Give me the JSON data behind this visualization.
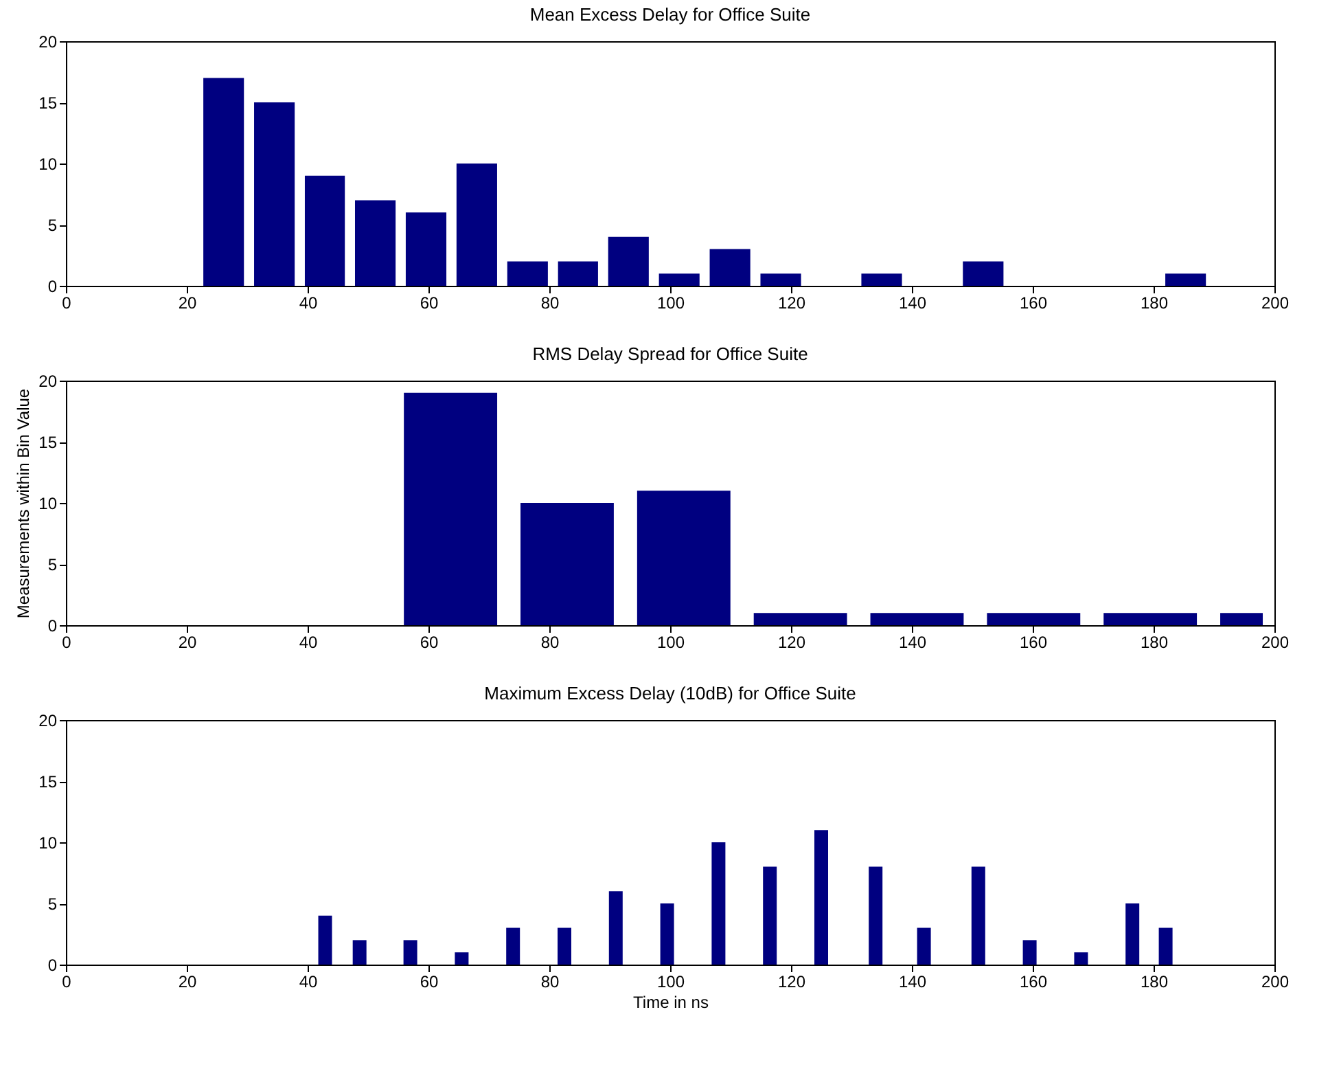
{
  "chart_data": [
    {
      "type": "histogram",
      "title": "Mean Excess Delay for Office Suite",
      "bins": [
        21.9,
        30.3,
        38.7,
        47.0,
        55.4,
        63.8,
        72.2,
        80.6,
        88.9,
        97.3,
        105.7,
        114.1,
        122.5,
        130.8,
        139.2,
        147.6,
        156.0,
        181.1,
        189.5
      ],
      "values": [
        17,
        15,
        9,
        7,
        6,
        10,
        2,
        2,
        4,
        1,
        3,
        1,
        0,
        1,
        0,
        2,
        0,
        1
      ],
      "color": "#000080",
      "xlim": [
        0,
        200
      ],
      "xticks": [
        0,
        20,
        40,
        60,
        80,
        100,
        120,
        140,
        160,
        180,
        200
      ],
      "ylim": [
        0,
        20
      ],
      "yticks": [
        0,
        5,
        10,
        15,
        20
      ],
      "grid": false
    },
    {
      "type": "histogram",
      "title": "RMS Delay Spread for Office Suite",
      "ylabel": "Measurements within Bin Value",
      "bins": [
        54.0,
        73.3,
        92.6,
        111.9,
        131.2,
        150.5,
        169.8,
        189.1,
        200
      ],
      "values": [
        19,
        10,
        11,
        1,
        1,
        1,
        1,
        1
      ],
      "color": "#000080",
      "xlim": [
        0,
        200
      ],
      "xticks": [
        0,
        20,
        40,
        60,
        80,
        100,
        120,
        140,
        160,
        180,
        200
      ],
      "ylim": [
        0,
        20
      ],
      "yticks": [
        0,
        5,
        10,
        15,
        20
      ],
      "grid": false
    },
    {
      "type": "bar",
      "title": "Maximum Excess Delay (10dB) for Office Suite",
      "xlabel": "Time in ns",
      "x": [
        42.9,
        48.6,
        57.0,
        65.5,
        74.0,
        82.5,
        91.0,
        99.5,
        108.0,
        116.5,
        125.0,
        134.0,
        142.0,
        151.0,
        159.5,
        168.0,
        176.5,
        182.0
      ],
      "values": [
        4,
        2,
        2,
        1,
        3,
        3,
        6,
        5,
        10,
        8,
        11,
        8,
        3,
        8,
        2,
        1,
        5,
        3
      ],
      "color": "#000080",
      "xlim": [
        0,
        200
      ],
      "xticks": [
        0,
        20,
        40,
        60,
        80,
        100,
        120,
        140,
        160,
        180,
        200
      ],
      "ylim": [
        0,
        20
      ],
      "yticks": [
        0,
        5,
        10,
        15,
        20
      ],
      "grid": false
    }
  ]
}
